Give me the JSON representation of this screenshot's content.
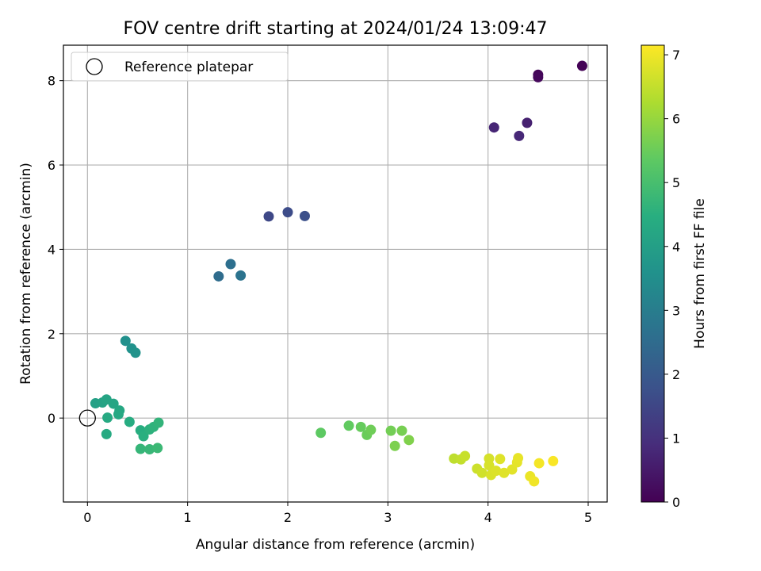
{
  "chart_data": {
    "type": "scatter",
    "title": "FOV centre drift starting at 2024/01/24 13:09:47",
    "xlabel": "Angular distance from reference (arcmin)",
    "ylabel": "Rotation from reference (arcmin)",
    "xlim": [
      -0.24,
      5.19
    ],
    "ylim": [
      -1.99,
      8.84
    ],
    "xticks": [
      0,
      1,
      2,
      3,
      4,
      5
    ],
    "yticks": [
      0,
      2,
      4,
      6,
      8
    ],
    "grid": true,
    "legend": {
      "position": "top-left",
      "entries": [
        "Reference platepar"
      ]
    },
    "reference_point": {
      "x": 0,
      "y": 0,
      "label": "Reference platepar"
    },
    "colorbar": {
      "label": "Hours from first FF file",
      "range": [
        0,
        7.15
      ],
      "ticks": [
        0,
        1,
        2,
        3,
        4,
        5,
        6,
        7
      ],
      "colormap": "viridis"
    },
    "points": [
      {
        "x": 4.94,
        "y": 8.35,
        "c": 0.05
      },
      {
        "x": 4.5,
        "y": 8.14,
        "c": 0.1
      },
      {
        "x": 4.5,
        "y": 8.08,
        "c": 0.15
      },
      {
        "x": 4.39,
        "y": 7.0,
        "c": 0.65
      },
      {
        "x": 4.06,
        "y": 6.89,
        "c": 0.75
      },
      {
        "x": 4.31,
        "y": 6.69,
        "c": 0.8
      },
      {
        "x": 1.81,
        "y": 4.78,
        "c": 1.55
      },
      {
        "x": 2.0,
        "y": 4.88,
        "c": 1.65
      },
      {
        "x": 2.17,
        "y": 4.79,
        "c": 1.75
      },
      {
        "x": 1.31,
        "y": 3.36,
        "c": 2.5
      },
      {
        "x": 1.43,
        "y": 3.65,
        "c": 2.6
      },
      {
        "x": 1.53,
        "y": 3.38,
        "c": 2.7
      },
      {
        "x": 0.38,
        "y": 1.83,
        "c": 3.55
      },
      {
        "x": 0.44,
        "y": 1.65,
        "c": 3.6
      },
      {
        "x": 0.48,
        "y": 1.55,
        "c": 3.65
      },
      {
        "x": 0.08,
        "y": 0.35,
        "c": 4.05
      },
      {
        "x": 0.15,
        "y": 0.37,
        "c": 4.1
      },
      {
        "x": 0.19,
        "y": 0.44,
        "c": 4.15
      },
      {
        "x": 0.26,
        "y": 0.34,
        "c": 4.2
      },
      {
        "x": 0.32,
        "y": 0.18,
        "c": 4.25
      },
      {
        "x": 0.31,
        "y": 0.09,
        "c": 4.28
      },
      {
        "x": 0.2,
        "y": 0.01,
        "c": 4.3
      },
      {
        "x": 0.19,
        "y": -0.38,
        "c": 4.35
      },
      {
        "x": 0.42,
        "y": -0.09,
        "c": 4.4
      },
      {
        "x": 0.53,
        "y": -0.29,
        "c": 4.45
      },
      {
        "x": 0.56,
        "y": -0.43,
        "c": 4.5
      },
      {
        "x": 0.62,
        "y": -0.27,
        "c": 4.55
      },
      {
        "x": 0.66,
        "y": -0.21,
        "c": 4.6
      },
      {
        "x": 0.71,
        "y": -0.11,
        "c": 4.65
      },
      {
        "x": 0.53,
        "y": -0.73,
        "c": 4.7
      },
      {
        "x": 0.62,
        "y": -0.74,
        "c": 4.75
      },
      {
        "x": 0.7,
        "y": -0.71,
        "c": 4.8
      },
      {
        "x": 2.33,
        "y": -0.35,
        "c": 5.35
      },
      {
        "x": 2.61,
        "y": -0.18,
        "c": 5.4
      },
      {
        "x": 2.73,
        "y": -0.21,
        "c": 5.45
      },
      {
        "x": 2.79,
        "y": -0.4,
        "c": 5.5
      },
      {
        "x": 2.83,
        "y": -0.28,
        "c": 5.55
      },
      {
        "x": 3.03,
        "y": -0.3,
        "c": 5.6
      },
      {
        "x": 3.14,
        "y": -0.3,
        "c": 5.65
      },
      {
        "x": 3.07,
        "y": -0.66,
        "c": 5.7
      },
      {
        "x": 3.21,
        "y": -0.52,
        "c": 5.75
      },
      {
        "x": 3.66,
        "y": -0.96,
        "c": 6.45
      },
      {
        "x": 3.73,
        "y": -0.98,
        "c": 6.5
      },
      {
        "x": 3.77,
        "y": -0.9,
        "c": 6.55
      },
      {
        "x": 3.89,
        "y": -1.2,
        "c": 6.6
      },
      {
        "x": 3.94,
        "y": -1.3,
        "c": 6.65
      },
      {
        "x": 4.01,
        "y": -0.96,
        "c": 6.7
      },
      {
        "x": 4.01,
        "y": -1.12,
        "c": 6.72
      },
      {
        "x": 4.03,
        "y": -1.35,
        "c": 6.75
      },
      {
        "x": 4.08,
        "y": -1.25,
        "c": 6.78
      },
      {
        "x": 4.12,
        "y": -0.97,
        "c": 6.8
      },
      {
        "x": 4.16,
        "y": -1.3,
        "c": 6.82
      },
      {
        "x": 4.24,
        "y": -1.22,
        "c": 6.85
      },
      {
        "x": 4.29,
        "y": -1.05,
        "c": 6.88
      },
      {
        "x": 4.3,
        "y": -0.95,
        "c": 6.9
      },
      {
        "x": 4.42,
        "y": -1.38,
        "c": 6.95
      },
      {
        "x": 4.46,
        "y": -1.5,
        "c": 7.0
      },
      {
        "x": 4.51,
        "y": -1.07,
        "c": 7.05
      },
      {
        "x": 4.65,
        "y": -1.02,
        "c": 7.1
      }
    ]
  }
}
